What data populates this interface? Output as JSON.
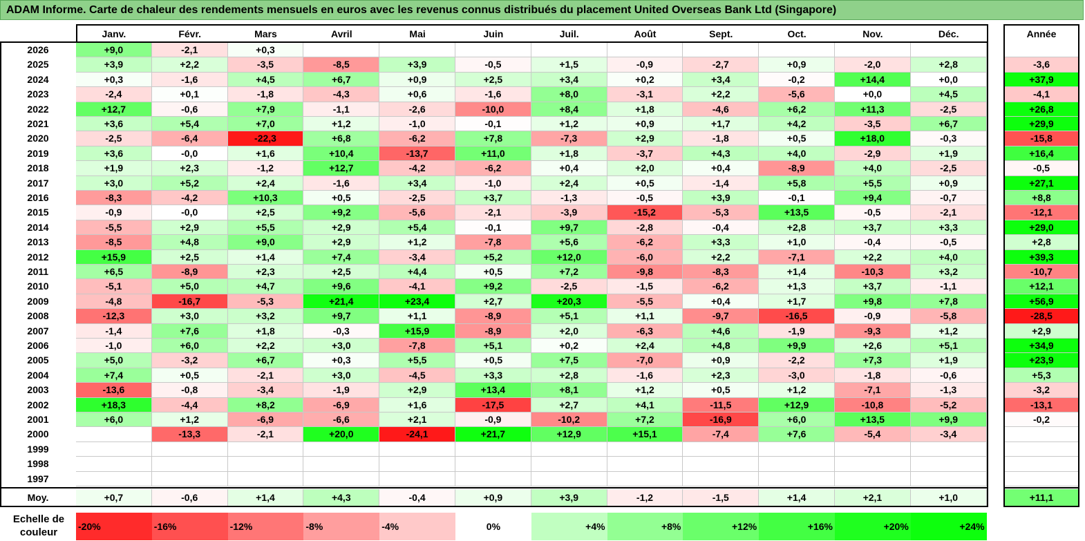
{
  "title": "ADAM Informe. Carte de chaleur des rendements mensuels en euros avec les revenus connus distribués du placement United Overseas Bank Ltd (Singapore)",
  "chart_data": {
    "type": "heatmap",
    "title": "ADAM Informe. Carte de chaleur des rendements mensuels en euros avec les revenus connus distribués du placement United Overseas Bank Ltd (Singapore)",
    "months": [
      "Janv.",
      "Févr.",
      "Mars",
      "Avril",
      "Mai",
      "Juin",
      "Juil.",
      "Août",
      "Sept.",
      "Oct.",
      "Nov.",
      "Déc."
    ],
    "year_header": "Année",
    "rows": [
      {
        "year": "2026",
        "values": [
          "+9,0",
          "-2,1",
          "+0,3",
          "",
          "",
          "",
          "",
          "",
          "",
          "",
          "",
          ""
        ],
        "annual": ""
      },
      {
        "year": "2025",
        "values": [
          "+3,9",
          "+2,2",
          "-3,5",
          "-8,5",
          "+3,9",
          "-0,5",
          "+1,5",
          "-0,9",
          "-2,7",
          "+0,9",
          "-2,0",
          "+2,8"
        ],
        "annual": "-3,6"
      },
      {
        "year": "2024",
        "values": [
          "+0,3",
          "-1,6",
          "+4,5",
          "+6,7",
          "+0,9",
          "+2,5",
          "+3,4",
          "+0,2",
          "+3,4",
          "-0,2",
          "+14,4",
          "+0,0"
        ],
        "annual": "+37,9"
      },
      {
        "year": "2023",
        "values": [
          "-2,4",
          "+0,1",
          "-1,8",
          "-4,3",
          "+0,6",
          "-1,6",
          "+8,0",
          "-3,1",
          "+2,2",
          "-5,6",
          "+0,0",
          "+4,5"
        ],
        "annual": "-4,1"
      },
      {
        "year": "2022",
        "values": [
          "+12,7",
          "-0,6",
          "+7,9",
          "-1,1",
          "-2,6",
          "-10,0",
          "+8,4",
          "+1,8",
          "-4,6",
          "+6,2",
          "+11,3",
          "-2,5"
        ],
        "annual": "+26,8"
      },
      {
        "year": "2021",
        "values": [
          "+3,6",
          "+5,4",
          "+7,0",
          "+1,2",
          "-1,0",
          "-0,1",
          "+1,2",
          "+0,9",
          "+1,7",
          "+4,2",
          "-3,5",
          "+6,7"
        ],
        "annual": "+29,9"
      },
      {
        "year": "2020",
        "values": [
          "-2,5",
          "-6,4",
          "-22,3",
          "+6,8",
          "-6,2",
          "+7,8",
          "-7,3",
          "+2,9",
          "-1,8",
          "+0,5",
          "+18,0",
          "-0,3"
        ],
        "annual": "-15,8"
      },
      {
        "year": "2019",
        "values": [
          "+3,6",
          "-0,0",
          "+1,6",
          "+10,4",
          "-13,7",
          "+11,0",
          "+1,8",
          "-3,7",
          "+4,3",
          "+4,0",
          "-2,9",
          "+1,9"
        ],
        "annual": "+16,4"
      },
      {
        "year": "2018",
        "values": [
          "+1,9",
          "+2,3",
          "-1,2",
          "+12,7",
          "-4,2",
          "-6,2",
          "+0,4",
          "+2,0",
          "+0,4",
          "-8,9",
          "+4,0",
          "-2,5"
        ],
        "annual": "-0,5"
      },
      {
        "year": "2017",
        "values": [
          "+3,0",
          "+5,2",
          "+2,4",
          "-1,6",
          "+3,4",
          "-1,0",
          "+2,4",
          "+0,5",
          "-1,4",
          "+5,8",
          "+5,5",
          "+0,9"
        ],
        "annual": "+27,1"
      },
      {
        "year": "2016",
        "values": [
          "-8,3",
          "-4,2",
          "+10,3",
          "+0,5",
          "-2,5",
          "+3,7",
          "-1,3",
          "-0,5",
          "+3,9",
          "-0,1",
          "+9,4",
          "-0,7"
        ],
        "annual": "+8,8"
      },
      {
        "year": "2015",
        "values": [
          "-0,9",
          "-0,0",
          "+2,5",
          "+9,2",
          "-5,6",
          "-2,1",
          "-3,9",
          "-15,2",
          "-5,3",
          "+13,5",
          "-0,5",
          "-2,1"
        ],
        "annual": "-12,1"
      },
      {
        "year": "2014",
        "values": [
          "-5,5",
          "+2,9",
          "+5,5",
          "+2,9",
          "+5,4",
          "-0,1",
          "+9,7",
          "-2,8",
          "-0,4",
          "+2,8",
          "+3,7",
          "+3,3"
        ],
        "annual": "+29,0"
      },
      {
        "year": "2013",
        "values": [
          "-8,5",
          "+4,8",
          "+9,0",
          "+2,9",
          "+1,2",
          "-7,8",
          "+5,6",
          "-6,2",
          "+3,3",
          "+1,0",
          "-0,4",
          "-0,5"
        ],
        "annual": "+2,8"
      },
      {
        "year": "2012",
        "values": [
          "+15,9",
          "+2,5",
          "+1,4",
          "+7,4",
          "-3,4",
          "+5,2",
          "+12,0",
          "-6,0",
          "+2,2",
          "-7,1",
          "+2,2",
          "+4,0"
        ],
        "annual": "+39,3"
      },
      {
        "year": "2011",
        "values": [
          "+6,5",
          "-8,9",
          "+2,3",
          "+2,5",
          "+4,4",
          "+0,5",
          "+7,2",
          "-9,8",
          "-8,3",
          "+1,4",
          "-10,3",
          "+3,2"
        ],
        "annual": "-10,7"
      },
      {
        "year": "2010",
        "values": [
          "-5,1",
          "+5,0",
          "+4,7",
          "+9,6",
          "-4,1",
          "+9,2",
          "-2,5",
          "-1,5",
          "-6,2",
          "+1,3",
          "+3,7",
          "-1,1"
        ],
        "annual": "+12,1"
      },
      {
        "year": "2009",
        "values": [
          "-4,8",
          "-16,7",
          "-5,3",
          "+21,4",
          "+23,4",
          "+2,7",
          "+20,3",
          "-5,5",
          "+0,4",
          "+1,7",
          "+9,8",
          "+7,8"
        ],
        "annual": "+56,9"
      },
      {
        "year": "2008",
        "values": [
          "-12,3",
          "+3,0",
          "+3,2",
          "+9,7",
          "+1,1",
          "-8,9",
          "+5,1",
          "+1,1",
          "-9,7",
          "-16,5",
          "-0,9",
          "-5,8"
        ],
        "annual": "-28,5"
      },
      {
        "year": "2007",
        "values": [
          "-1,4",
          "+7,6",
          "+1,8",
          "-0,3",
          "+15,9",
          "-8,9",
          "+2,0",
          "-6,3",
          "+4,6",
          "-1,9",
          "-9,3",
          "+1,2"
        ],
        "annual": "+2,9"
      },
      {
        "year": "2006",
        "values": [
          "-1,0",
          "+6,0",
          "+2,2",
          "+3,0",
          "-7,8",
          "+5,1",
          "+0,2",
          "+2,4",
          "+4,8",
          "+9,9",
          "+2,6",
          "+5,1"
        ],
        "annual": "+34,9"
      },
      {
        "year": "2005",
        "values": [
          "+5,0",
          "-3,2",
          "+6,7",
          "+0,3",
          "+5,5",
          "+0,5",
          "+7,5",
          "-7,0",
          "+0,9",
          "-2,2",
          "+7,3",
          "+1,9"
        ],
        "annual": "+23,9"
      },
      {
        "year": "2004",
        "values": [
          "+7,4",
          "+0,5",
          "-2,1",
          "+3,0",
          "-4,5",
          "+3,3",
          "+2,8",
          "-1,6",
          "+2,3",
          "-3,0",
          "-1,8",
          "-0,6"
        ],
        "annual": "+5,3"
      },
      {
        "year": "2003",
        "values": [
          "-13,6",
          "-0,8",
          "-3,4",
          "-1,9",
          "+2,9",
          "+13,4",
          "+8,1",
          "+1,2",
          "+0,5",
          "+1,2",
          "-7,1",
          "-1,3"
        ],
        "annual": "-3,2"
      },
      {
        "year": "2002",
        "values": [
          "+18,3",
          "-4,4",
          "+8,2",
          "-6,9",
          "+1,6",
          "-17,5",
          "+2,7",
          "+4,1",
          "-11,5",
          "+12,9",
          "-10,8",
          "-5,2"
        ],
        "annual": "-13,1"
      },
      {
        "year": "2001",
        "values": [
          "+6,0",
          "+1,2",
          "-6,9",
          "-6,6",
          "+2,1",
          "-0,9",
          "-10,2",
          "+7,2",
          "-16,9",
          "+6,0",
          "+13,5",
          "+9,9"
        ],
        "annual": "-0,2"
      },
      {
        "year": "2000",
        "values": [
          "",
          "-13,3",
          "-2,1",
          "+20,0",
          "-24,1",
          "+21,7",
          "+12,9",
          "+15,1",
          "-7,4",
          "+7,6",
          "-5,4",
          "-3,4"
        ],
        "annual": ""
      },
      {
        "year": "1999",
        "values": [
          "",
          "",
          "",
          "",
          "",
          "",
          "",
          "",
          "",
          "",
          "",
          ""
        ],
        "annual": ""
      },
      {
        "year": "1998",
        "values": [
          "",
          "",
          "",
          "",
          "",
          "",
          "",
          "",
          "",
          "",
          "",
          ""
        ],
        "annual": ""
      },
      {
        "year": "1997",
        "values": [
          "",
          "",
          "",
          "",
          "",
          "",
          "",
          "",
          "",
          "",
          "",
          ""
        ],
        "annual": ""
      }
    ],
    "average": {
      "label": "Moy.",
      "values": [
        "+0,7",
        "-0,6",
        "+1,4",
        "+4,3",
        "-0,4",
        "+0,9",
        "+3,9",
        "-1,2",
        "-1,5",
        "+1,4",
        "+2,1",
        "+1,0"
      ],
      "annual": "+11,1"
    },
    "scale": {
      "label": "Echelle de couleur",
      "steps": [
        {
          "text": "-20%",
          "value": -20,
          "align": "left"
        },
        {
          "text": "-16%",
          "value": -16,
          "align": "left"
        },
        {
          "text": "-12%",
          "value": -12,
          "align": "left"
        },
        {
          "text": "-8%",
          "value": -8,
          "align": "left"
        },
        {
          "text": "-4%",
          "value": -4,
          "align": "left"
        },
        {
          "text": "0%",
          "value": 0,
          "align": "center"
        },
        {
          "text": "+4%",
          "value": 4,
          "align": "right"
        },
        {
          "text": "+8%",
          "value": 8,
          "align": "right"
        },
        {
          "text": "+12%",
          "value": 12,
          "align": "right"
        },
        {
          "text": "+16%",
          "value": 16,
          "align": "right"
        },
        {
          "text": "+20%",
          "value": 20,
          "align": "right"
        },
        {
          "text": "+24%",
          "value": 24,
          "align": "right"
        }
      ]
    },
    "colors": {
      "negative": "#ff0000",
      "positive": "#00ff00",
      "neutral": "#ffffff",
      "title_bg": "#8fd18a"
    }
  }
}
